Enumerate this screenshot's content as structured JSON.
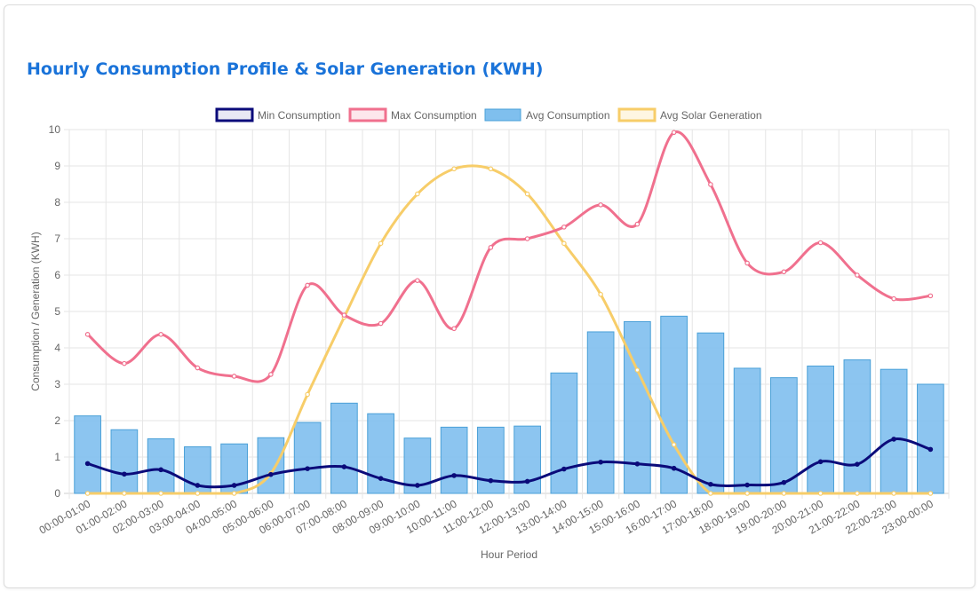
{
  "title": "Hourly Consumption Profile & Solar Generation (KWH)",
  "chart_data": {
    "type": "bar",
    "x_label": "Hour Period",
    "y_label": "Consumption / Generation (KWH)",
    "ylim": [
      0,
      10
    ],
    "y_ticks": [
      0,
      1,
      2,
      3,
      4,
      5,
      6,
      7,
      8,
      9,
      10
    ],
    "grid": true,
    "legend_position": "top",
    "categories": [
      "00:00-01:00",
      "01:00-02:00",
      "02:00-03:00",
      "03:00-04:00",
      "04:00-05:00",
      "05:00-06:00",
      "06:00-07:00",
      "07:00-08:00",
      "08:00-09:00",
      "09:00-10:00",
      "10:00-11:00",
      "11:00-12:00",
      "12:00-13:00",
      "13:00-14:00",
      "14:00-15:00",
      "15:00-16:00",
      "16:00-17:00",
      "17:00-18:00",
      "18:00-19:00",
      "19:00-20:00",
      "20:00-21:00",
      "21:00-22:00",
      "22:00-23:00",
      "23:00-00:00"
    ],
    "series": [
      {
        "name": "Min Consumption",
        "type": "line",
        "color": "#0b0b7a",
        "values": [
          0.82,
          0.53,
          0.65,
          0.22,
          0.22,
          0.52,
          0.68,
          0.73,
          0.41,
          0.22,
          0.49,
          0.35,
          0.33,
          0.67,
          0.86,
          0.81,
          0.69,
          0.25,
          0.23,
          0.3,
          0.87,
          0.8,
          1.49,
          1.21
        ]
      },
      {
        "name": "Max Consumption",
        "type": "line",
        "color": "#f0708e",
        "values": [
          4.37,
          3.57,
          4.37,
          3.45,
          3.22,
          3.27,
          5.72,
          4.9,
          4.67,
          5.85,
          4.53,
          6.76,
          7.0,
          7.32,
          7.93,
          7.4,
          9.92,
          8.49,
          6.33,
          6.09,
          6.89,
          6.0,
          5.35,
          5.43
        ]
      },
      {
        "name": "Avg Consumption",
        "type": "bar",
        "color": "#7fbfee",
        "border": "#4aa0d8",
        "values": [
          2.13,
          1.75,
          1.5,
          1.28,
          1.36,
          1.53,
          1.95,
          2.48,
          2.19,
          1.52,
          1.82,
          1.82,
          1.85,
          3.31,
          4.44,
          4.72,
          4.87,
          4.41,
          3.44,
          3.18,
          3.5,
          3.67,
          3.41,
          3.0
        ]
      },
      {
        "name": "Avg Solar Generation",
        "type": "line",
        "color": "#f7cd69",
        "values": [
          0,
          0,
          0,
          0,
          0,
          0.55,
          2.72,
          4.84,
          6.87,
          8.23,
          8.92,
          8.92,
          8.23,
          6.87,
          5.47,
          3.39,
          1.34,
          0,
          0,
          0,
          0,
          0,
          0,
          0
        ]
      }
    ]
  }
}
